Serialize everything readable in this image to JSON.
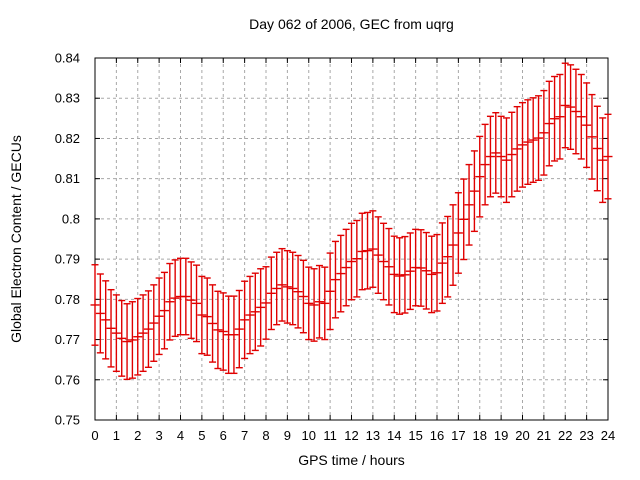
{
  "chart_data": {
    "type": "errorbar",
    "title": "Day 062 of 2006, GEC from uqrg",
    "xlabel": "GPS time / hours",
    "ylabel": "Global Electron Content / GECUs",
    "xlim": [
      0,
      24
    ],
    "ylim": [
      0.75,
      0.84
    ],
    "x_ticks": [
      0,
      1,
      2,
      3,
      4,
      5,
      6,
      7,
      8,
      9,
      10,
      11,
      12,
      13,
      14,
      15,
      16,
      17,
      18,
      19,
      20,
      21,
      22,
      23,
      24
    ],
    "y_ticks": [
      "0.75",
      "0.76",
      "0.77",
      "0.78",
      "0.79",
      "0.8",
      "0.81",
      "0.82",
      "0.83",
      "0.84"
    ],
    "grid": true,
    "legend": "none",
    "grid_color": "#a8a8a8",
    "series": [
      {
        "name": "GEC",
        "color": "#e00000",
        "x": [
          0,
          0.25,
          0.5,
          0.75,
          1,
          1.25,
          1.5,
          1.75,
          2,
          2.25,
          2.5,
          2.75,
          3,
          3.25,
          3.5,
          3.75,
          4,
          4.25,
          4.5,
          4.75,
          5,
          5.25,
          5.5,
          5.75,
          6,
          6.25,
          6.5,
          6.75,
          7,
          7.25,
          7.5,
          7.75,
          8,
          8.25,
          8.5,
          8.75,
          9,
          9.25,
          9.5,
          9.75,
          10,
          10.25,
          10.5,
          10.75,
          11,
          11.25,
          11.5,
          11.75,
          12,
          12.25,
          12.5,
          12.75,
          13,
          13.25,
          13.5,
          13.75,
          14,
          14.25,
          14.5,
          14.75,
          15,
          15.25,
          15.5,
          15.75,
          16,
          16.25,
          16.5,
          16.75,
          17,
          17.25,
          17.5,
          17.75,
          18,
          18.25,
          18.5,
          18.75,
          19,
          19.25,
          19.5,
          19.75,
          20,
          20.25,
          20.5,
          20.75,
          21,
          21.25,
          21.5,
          21.75,
          22,
          22.25,
          22.5,
          22.75,
          23,
          23.25,
          23.5,
          23.75,
          24
        ],
        "mean": [
          0.7786,
          0.7765,
          0.7749,
          0.7728,
          0.7716,
          0.7703,
          0.7695,
          0.7699,
          0.7707,
          0.7716,
          0.7726,
          0.7741,
          0.7758,
          0.7772,
          0.7794,
          0.7803,
          0.7807,
          0.7807,
          0.7798,
          0.779,
          0.7761,
          0.7757,
          0.774,
          0.7724,
          0.772,
          0.7712,
          0.7712,
          0.7726,
          0.7749,
          0.7761,
          0.7769,
          0.778,
          0.7791,
          0.7815,
          0.7827,
          0.7836,
          0.7831,
          0.7827,
          0.7819,
          0.7807,
          0.779,
          0.7786,
          0.7794,
          0.779,
          0.782,
          0.7849,
          0.7864,
          0.7879,
          0.7894,
          0.7901,
          0.7919,
          0.7921,
          0.7925,
          0.791,
          0.7894,
          0.7881,
          0.7862,
          0.7858,
          0.7861,
          0.787,
          0.7879,
          0.7878,
          0.7871,
          0.7862,
          0.7866,
          0.789,
          0.7906,
          0.7935,
          0.7965,
          0.7999,
          0.8035,
          0.8069,
          0.8105,
          0.8135,
          0.8155,
          0.8164,
          0.8155,
          0.8146,
          0.816,
          0.8174,
          0.8184,
          0.8191,
          0.8196,
          0.8201,
          0.8214,
          0.8237,
          0.8249,
          0.8254,
          0.8282,
          0.8278,
          0.8267,
          0.8254,
          0.8233,
          0.8204,
          0.8175,
          0.8146,
          0.8155
        ],
        "err": [
          0.01,
          0.0098,
          0.0097,
          0.0096,
          0.0095,
          0.0094,
          0.0094,
          0.0095,
          0.0095,
          0.0095,
          0.0095,
          0.0095,
          0.0095,
          0.0095,
          0.0095,
          0.0095,
          0.0095,
          0.0095,
          0.0095,
          0.0095,
          0.0096,
          0.0096,
          0.0096,
          0.0096,
          0.0096,
          0.0096,
          0.0096,
          0.0096,
          0.0096,
          0.0096,
          0.0096,
          0.0096,
          0.009,
          0.009,
          0.009,
          0.009,
          0.009,
          0.009,
          0.009,
          0.009,
          0.009,
          0.009,
          0.009,
          0.009,
          0.0095,
          0.0095,
          0.0095,
          0.0095,
          0.0095,
          0.0095,
          0.0095,
          0.0095,
          0.0095,
          0.0095,
          0.0095,
          0.0095,
          0.0095,
          0.0095,
          0.0095,
          0.0095,
          0.0095,
          0.0095,
          0.0095,
          0.0095,
          0.0095,
          0.01,
          0.01,
          0.01,
          0.01,
          0.01,
          0.01,
          0.01,
          0.01,
          0.01,
          0.01,
          0.01,
          0.01,
          0.0105,
          0.0105,
          0.0105,
          0.0105,
          0.0105,
          0.0105,
          0.0105,
          0.0105,
          0.0105,
          0.0105,
          0.0105,
          0.0105,
          0.0105,
          0.0105,
          0.0105,
          0.0105,
          0.0105,
          0.0105,
          0.0105,
          0.0105
        ]
      }
    ]
  }
}
